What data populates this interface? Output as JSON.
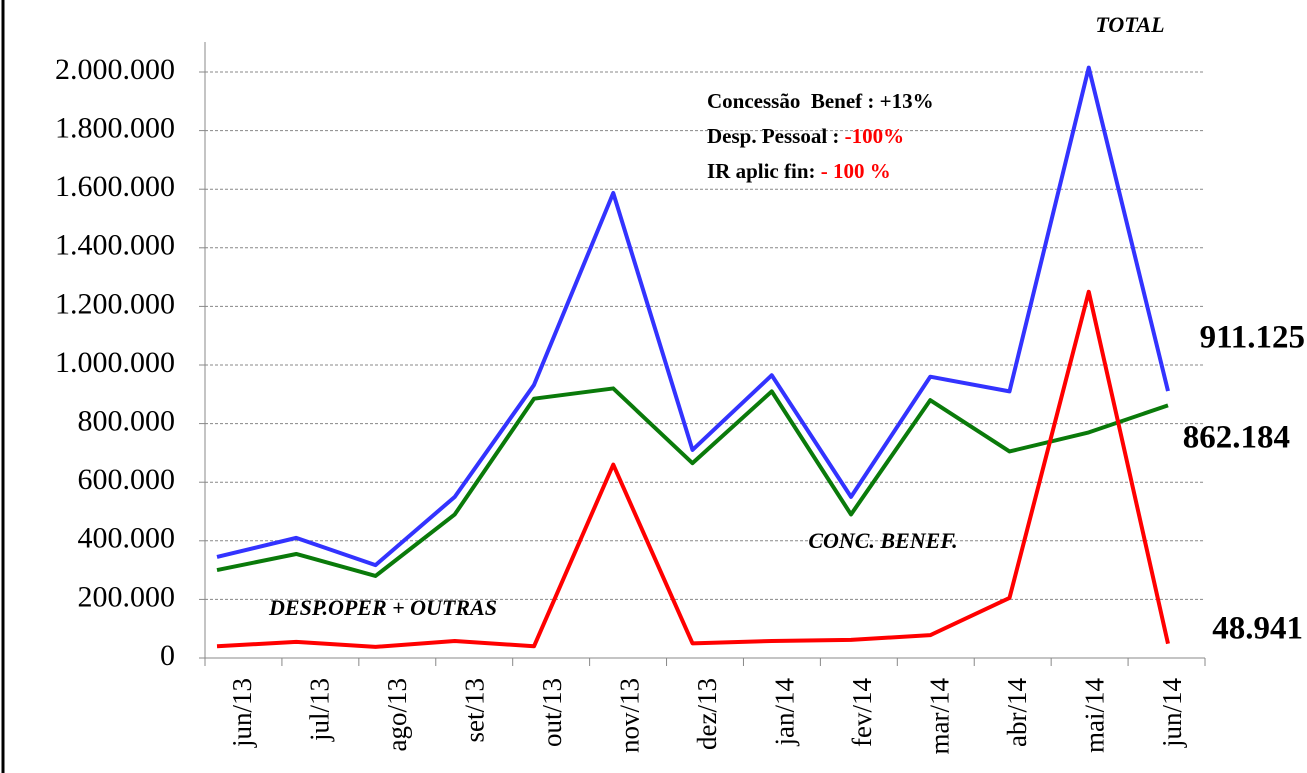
{
  "chart_data": {
    "type": "line",
    "categories": [
      "jun/13",
      "jul/13",
      "ago/13",
      "set/13",
      "out/13",
      "nov/13",
      "dez/13",
      "jan/14",
      "fev/14",
      "mar/14",
      "abr/14",
      "mai/14",
      "jun/14"
    ],
    "ylim": [
      0,
      2000000
    ],
    "yticks": [
      0,
      {
        "value": 200000,
        "label": "200.000"
      },
      {
        "value": 400000,
        "label": "400.000"
      },
      {
        "value": 600000,
        "label": "600.000"
      },
      {
        "value": 800000,
        "label": "800.000"
      },
      {
        "value": 1000000,
        "label": "1.000.000"
      },
      {
        "value": 1200000,
        "label": "1.200.000"
      },
      {
        "value": 1400000,
        "label": "1.400.000"
      },
      {
        "value": 1600000,
        "label": "1.600.000"
      },
      {
        "value": 1800000,
        "label": "1.800.000"
      },
      {
        "value": 2000000,
        "label": "2.000.000"
      }
    ],
    "grid": true,
    "series": [
      {
        "name": "TOTAL",
        "color": "#3333ff",
        "values": [
          345000,
          410000,
          317000,
          550000,
          932000,
          1587000,
          710000,
          965000,
          550000,
          960000,
          910000,
          2015000,
          911125
        ],
        "value_labels": [
          null,
          null,
          null,
          null,
          null,
          null,
          null,
          null,
          null,
          null,
          null,
          null,
          "911.125"
        ]
      },
      {
        "name": "CONC. BENEF.",
        "color": "#0a7a0a",
        "values": [
          300000,
          355000,
          280000,
          490000,
          885000,
          920000,
          665000,
          910000,
          490000,
          880000,
          705000,
          770000,
          862184
        ],
        "value_labels": [
          null,
          null,
          null,
          null,
          null,
          null,
          null,
          null,
          null,
          null,
          null,
          null,
          "862.184"
        ]
      },
      {
        "name": "DESP.OPER + OUTRAS",
        "color": "#ff0000",
        "values": [
          40000,
          55000,
          38000,
          58000,
          40000,
          660000,
          50000,
          58000,
          62000,
          78000,
          205000,
          1250000,
          48941
        ],
        "value_labels": [
          null,
          null,
          null,
          null,
          null,
          null,
          null,
          null,
          null,
          null,
          null,
          null,
          "48.941"
        ]
      }
    ],
    "annotations": [
      [
        {
          "text": "Concessão  Benef : +13%",
          "color": "#000000"
        }
      ],
      [
        {
          "text": "Desp. Pessoal : ",
          "color": "#000000"
        },
        {
          "text": "-100%",
          "color": "#ff0000"
        }
      ],
      [
        {
          "text": "IR aplic fin: ",
          "color": "#000000"
        },
        {
          "text": "- 100 %",
          "color": "#ff0000"
        }
      ]
    ]
  }
}
